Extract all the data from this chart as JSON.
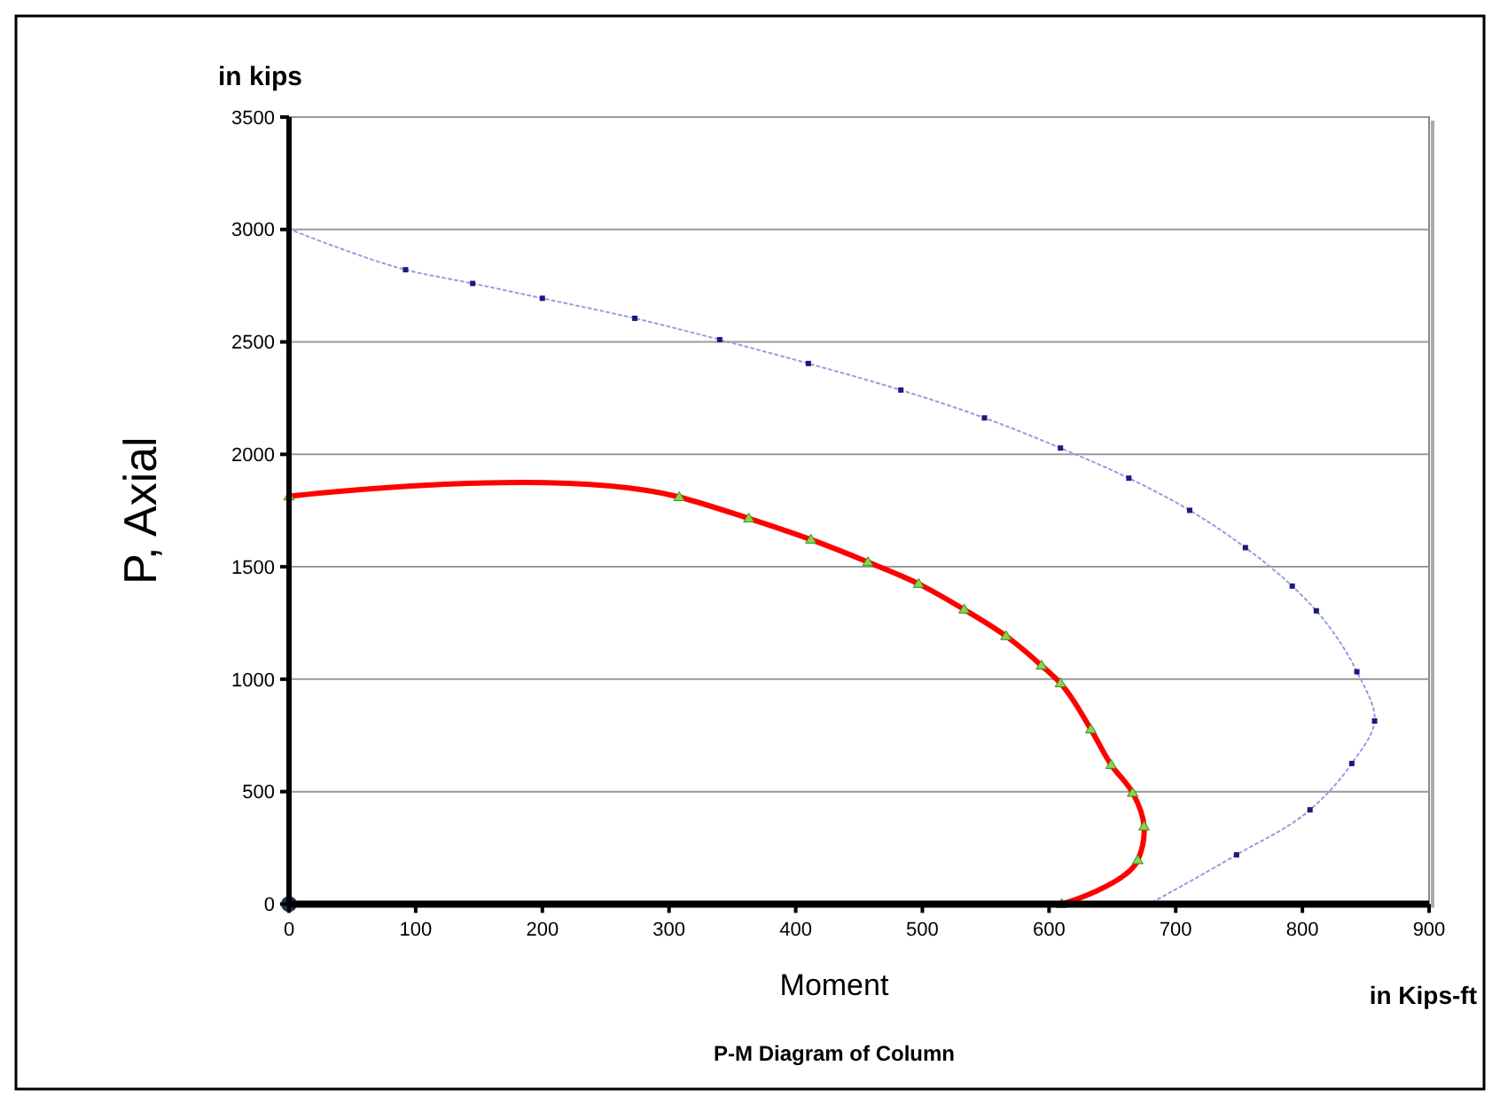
{
  "chart_data": {
    "type": "line",
    "title": "P-M Diagram of Column",
    "xlabel": "Moment",
    "ylabel": "P, Axial",
    "annotations": [
      "in kips",
      "in Kips-ft"
    ],
    "xlim": [
      0,
      900
    ],
    "xticks": [
      0,
      100,
      200,
      300,
      400,
      500,
      600,
      700,
      800,
      900
    ],
    "ylim": [
      0,
      3500
    ],
    "yticks": [
      0,
      500,
      1000,
      1500,
      2000,
      2500,
      3000,
      3500
    ],
    "grid": "y",
    "series": [
      {
        "color": "#9a9ae0",
        "marker": "square",
        "line_style": "dotted",
        "x": [
          0,
          92,
          145,
          200,
          273,
          340,
          410,
          483,
          549,
          609,
          663,
          711,
          755,
          792,
          811,
          843,
          857,
          839,
          806,
          748,
          679
        ],
        "values": [
          3002,
          2821,
          2760,
          2694,
          2605,
          2510,
          2404,
          2286,
          2162,
          2028,
          1894,
          1751,
          1585,
          1414,
          1304,
          1033,
          814,
          625,
          419,
          219,
          0
        ]
      },
      {
        "color": "#ff0000",
        "marker": "triangle",
        "line_style": "solid",
        "x": [
          0,
          308,
          363,
          412,
          457,
          497,
          533,
          566,
          594,
          609,
          633,
          649,
          666,
          675,
          670,
          610
        ],
        "values": [
          1813,
          1810,
          1715,
          1621,
          1521,
          1424,
          1310,
          1192,
          1061,
          982,
          777,
          619,
          495,
          345,
          195,
          0
        ]
      },
      {
        "type": "scatter",
        "color": "#1f3050",
        "marker": "circle",
        "x": [
          0
        ],
        "values": [
          0
        ]
      }
    ]
  }
}
